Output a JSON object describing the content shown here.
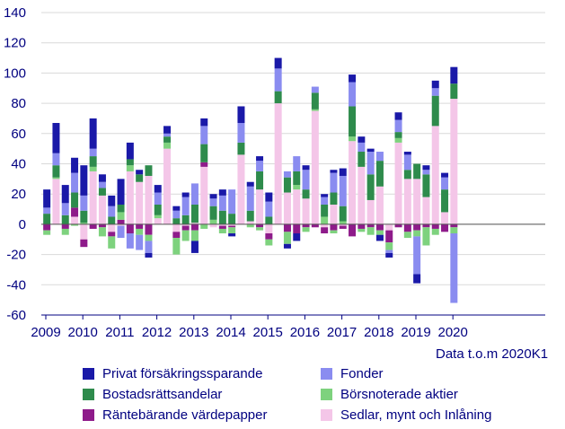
{
  "chart_data": {
    "type": "bar",
    "stacked": true,
    "note": "Data t.o.m 2020K1",
    "ylim": [
      -60,
      140
    ],
    "yticks": [
      -60,
      -40,
      -20,
      0,
      20,
      40,
      60,
      80,
      100,
      120,
      140
    ],
    "year_labels": [
      "2009",
      "2010",
      "2011",
      "2012",
      "2013",
      "2014",
      "2015",
      "2016",
      "2017",
      "2018",
      "2019",
      "2020"
    ],
    "quarters": [
      "2009K1",
      "2009K2",
      "2009K3",
      "2009K4",
      "2010K1",
      "2010K2",
      "2010K3",
      "2010K4",
      "2011K1",
      "2011K2",
      "2011K3",
      "2011K4",
      "2012K1",
      "2012K2",
      "2012K3",
      "2012K4",
      "2013K1",
      "2013K2",
      "2013K3",
      "2013K4",
      "2014K1",
      "2014K2",
      "2014K3",
      "2014K4",
      "2015K1",
      "2015K2",
      "2015K3",
      "2015K4",
      "2016K1",
      "2016K2",
      "2016K3",
      "2016K4",
      "2017K1",
      "2017K2",
      "2017K3",
      "2017K4",
      "2018K1",
      "2018K2",
      "2018K3",
      "2018K4",
      "2019K1",
      "2019K2",
      "2019K3",
      "2019K4",
      "2020K1"
    ],
    "series": [
      {
        "name": "Sedlar, mynt och Inlåning",
        "key": "sedlar",
        "color": "#F4C6E8",
        "values": [
          0,
          30,
          0,
          5,
          -10,
          35,
          19,
          -5,
          -1,
          35,
          28,
          32,
          4,
          50,
          -5,
          -1,
          1,
          38,
          -2,
          -1,
          -1,
          46,
          2,
          23,
          -6,
          80,
          21,
          23,
          17,
          75,
          -2,
          13,
          -1,
          55,
          38,
          16,
          25,
          -4,
          54,
          30,
          30,
          18,
          65,
          8,
          83
        ]
      },
      {
        "name": "Räntebärande värdepapper",
        "key": "ranta",
        "color": "#8E1B8A",
        "values": [
          -4,
          0,
          -3,
          6,
          -5,
          -3,
          -2,
          -3,
          3,
          -6,
          -3,
          -7,
          0,
          0,
          -4,
          -3,
          -4,
          3,
          0,
          -2,
          -1,
          0,
          0,
          -2,
          -4,
          0,
          -5,
          -6,
          -2,
          -2,
          -4,
          -4,
          -2,
          -8,
          -3,
          -2,
          -4,
          -8,
          -2,
          -5,
          -4,
          -2,
          -3,
          -5,
          -2
        ]
      },
      {
        "name": "Börsnoterade aktier",
        "key": "aktier",
        "color": "#7ED27E",
        "values": [
          -3,
          1,
          -4,
          -1,
          1,
          3,
          -6,
          -8,
          5,
          4,
          -4,
          -4,
          2,
          4,
          -11,
          -7,
          -7,
          -3,
          3,
          -3,
          -4,
          0,
          -2,
          -2,
          -4,
          0,
          -8,
          3,
          -3,
          1,
          5,
          -2,
          2,
          3,
          -2,
          -5,
          -3,
          -5,
          3,
          -4,
          -4,
          -12,
          -4,
          0,
          -4
        ]
      },
      {
        "name": "Bostadsrättsandelar",
        "key": "bostad",
        "color": "#2E8B4C",
        "values": [
          7,
          8,
          6,
          10,
          8,
          7,
          5,
          5,
          5,
          4,
          5,
          7,
          7,
          4,
          4,
          6,
          12,
          12,
          9,
          9,
          7,
          8,
          7,
          12,
          5,
          8,
          10,
          9,
          6,
          11,
          8,
          8,
          10,
          20,
          10,
          17,
          17,
          0,
          4,
          6,
          10,
          15,
          20,
          15,
          10
        ]
      },
      {
        "name": "Fonder",
        "key": "fonder",
        "color": "#8A8CF0",
        "values": [
          4,
          8,
          8,
          13,
          10,
          5,
          4,
          7,
          -8,
          -10,
          -10,
          -8,
          8,
          2,
          5,
          12,
          14,
          12,
          5,
          10,
          16,
          13,
          16,
          7,
          10,
          15,
          4,
          10,
          13,
          4,
          5,
          13,
          20,
          16,
          6,
          15,
          6,
          -2,
          8,
          10,
          -25,
          3,
          5,
          8,
          -46
        ]
      },
      {
        "name": "Privat försäkringssparande",
        "key": "privat",
        "color": "#1A19A8",
        "values": [
          12,
          20,
          12,
          10,
          20,
          20,
          5,
          7,
          17,
          11,
          3,
          -3,
          5,
          5,
          3,
          3,
          -8,
          5,
          3,
          4,
          -2,
          11,
          3,
          3,
          6,
          7,
          -3,
          -5,
          3,
          0,
          2,
          2,
          5,
          5,
          4,
          2,
          -4,
          -3,
          5,
          2,
          -6,
          3,
          5,
          3,
          11
        ]
      }
    ]
  },
  "legend": [
    {
      "label": "Privat försäkringssparande",
      "color": "#1A19A8"
    },
    {
      "label": "Fonder",
      "color": "#8A8CF0"
    },
    {
      "label": "Bostadsrättsandelar",
      "color": "#2E8B4C"
    },
    {
      "label": "Börsnoterade aktier",
      "color": "#7ED27E"
    },
    {
      "label": "Räntebärande värdepapper",
      "color": "#8E1B8A"
    },
    {
      "label": "Sedlar, mynt och Inlåning",
      "color": "#F4C6E8"
    }
  ]
}
